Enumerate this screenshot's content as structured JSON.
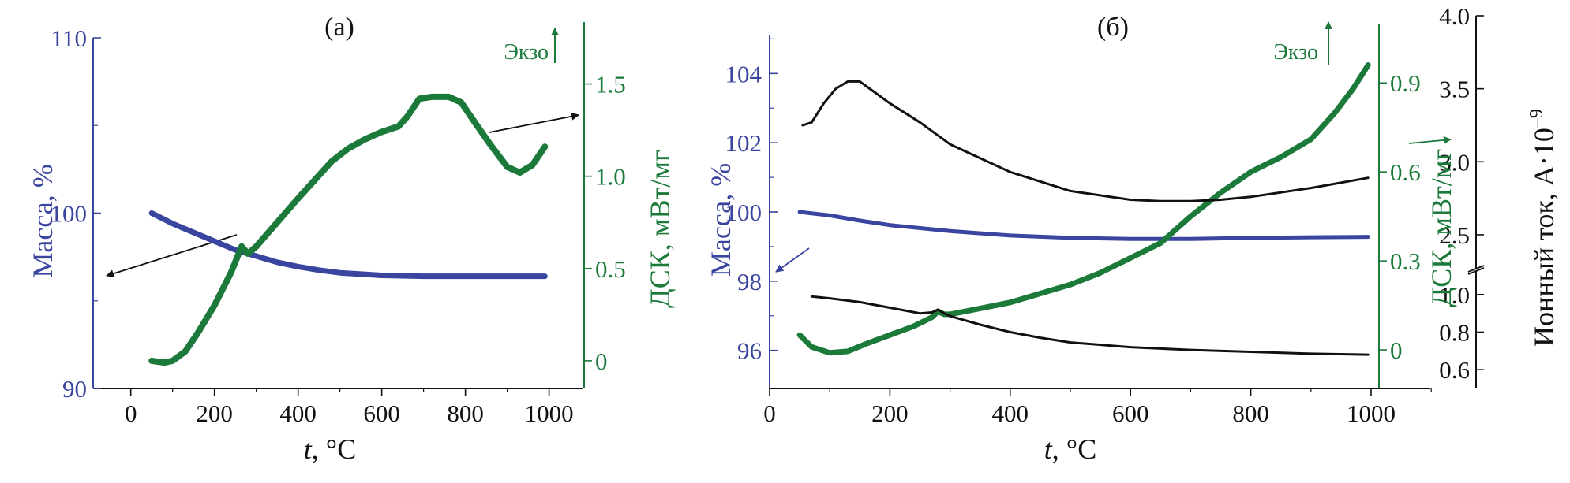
{
  "colors": {
    "mass": "#3a45a0",
    "dsc": "#1b7a3a",
    "ion": "#111111"
  },
  "chart_data": [
    {
      "panel_label": "(а)",
      "type": "line",
      "xlabel_italic": "t",
      "xlabel_rest": ", °C",
      "x_ticks": [
        "0",
        "200",
        "400",
        "600",
        "800",
        "1000"
      ],
      "xlim": [
        -90,
        1080
      ],
      "y_left": {
        "label": "Масса, %",
        "ticks": [
          "90",
          "100",
          "110"
        ],
        "lim": [
          90,
          110
        ]
      },
      "y_right": {
        "label": "ДСК, мВт/мг",
        "ticks": [
          "0",
          "0.5",
          "1.0",
          "1.5"
        ],
        "lim": [
          -0.15,
          1.75
        ]
      },
      "ekzo": "Экзо",
      "series": [
        {
          "axis": "left",
          "color_key": "mass",
          "x": [
            50,
            100,
            150,
            200,
            250,
            300,
            350,
            400,
            450,
            500,
            600,
            700,
            800,
            900,
            990
          ],
          "y": [
            100.0,
            99.4,
            98.9,
            98.4,
            97.9,
            97.55,
            97.2,
            96.95,
            96.75,
            96.6,
            96.45,
            96.4,
            96.4,
            96.4,
            96.4
          ]
        },
        {
          "axis": "right",
          "color_key": "dsc",
          "x": [
            50,
            80,
            100,
            130,
            160,
            200,
            240,
            265,
            280,
            300,
            350,
            400,
            440,
            480,
            520,
            560,
            600,
            640,
            660,
            690,
            720,
            760,
            790,
            820,
            860,
            900,
            930,
            960,
            990
          ],
          "y": [
            0.0,
            -0.01,
            0.0,
            0.05,
            0.15,
            0.3,
            0.48,
            0.62,
            0.58,
            0.62,
            0.75,
            0.88,
            0.98,
            1.08,
            1.15,
            1.2,
            1.24,
            1.27,
            1.32,
            1.42,
            1.43,
            1.43,
            1.4,
            1.3,
            1.17,
            1.05,
            1.02,
            1.06,
            1.16
          ]
        }
      ]
    },
    {
      "panel_label": "(б)",
      "type": "line",
      "xlabel_italic": "t",
      "xlabel_rest": ", °C",
      "x_ticks": [
        "0",
        "200",
        "400",
        "600",
        "800",
        "1000"
      ],
      "xlim": [
        0,
        1100
      ],
      "y_left": {
        "label": "Масса, %",
        "ticks": [
          "96",
          "98",
          "100",
          "102",
          "104"
        ],
        "lim": [
          94.9,
          105.1
        ]
      },
      "y_right": {
        "label": "ДСК, мВт/мг",
        "ticks": [
          "0",
          "0.3",
          "0.6",
          "0.9"
        ],
        "lim": [
          -0.13,
          1.06
        ]
      },
      "y_far": {
        "label": "Ионный ток, А·10",
        "label_sup": "–9",
        "ticks_lower": [
          "0.6",
          "0.8",
          "1.0"
        ],
        "ticks_upper": [
          "2.5",
          "3.0",
          "3.5",
          "4.0"
        ],
        "lower_lim": [
          0.5,
          1.1
        ],
        "upper_lim": [
          2.3,
          4.0
        ]
      },
      "ekzo": "Экзо",
      "series": [
        {
          "axis": "left",
          "color_key": "mass",
          "x": [
            50,
            100,
            150,
            200,
            300,
            400,
            500,
            600,
            700,
            800,
            900,
            995
          ],
          "y": [
            100.0,
            99.9,
            99.75,
            99.62,
            99.45,
            99.32,
            99.25,
            99.22,
            99.22,
            99.25,
            99.27,
            99.28
          ]
        },
        {
          "axis": "right",
          "color_key": "dsc",
          "x": [
            50,
            70,
            100,
            130,
            160,
            200,
            240,
            270,
            280,
            290,
            300,
            350,
            400,
            450,
            500,
            550,
            600,
            650,
            700,
            750,
            800,
            850,
            900,
            940,
            970,
            995
          ],
          "y": [
            0.05,
            0.01,
            -0.01,
            -0.005,
            0.02,
            0.05,
            0.08,
            0.11,
            0.13,
            0.12,
            0.12,
            0.14,
            0.16,
            0.19,
            0.22,
            0.26,
            0.31,
            0.36,
            0.45,
            0.53,
            0.6,
            0.65,
            0.71,
            0.8,
            0.88,
            0.96
          ]
        },
        {
          "axis": "far-upper",
          "color_key": "ion",
          "x": [
            55,
            70,
            90,
            110,
            130,
            150,
            170,
            200,
            250,
            300,
            400,
            500,
            600,
            650,
            700,
            750,
            800,
            900,
            995
          ],
          "y": [
            3.25,
            3.27,
            3.4,
            3.5,
            3.55,
            3.55,
            3.49,
            3.4,
            3.27,
            3.12,
            2.93,
            2.8,
            2.74,
            2.73,
            2.73,
            2.74,
            2.76,
            2.82,
            2.89
          ]
        },
        {
          "axis": "far-lower",
          "color_key": "ion",
          "x": [
            70,
            100,
            150,
            200,
            250,
            270,
            280,
            290,
            300,
            350,
            400,
            450,
            500,
            600,
            700,
            800,
            900,
            995
          ],
          "y": [
            0.99,
            0.98,
            0.96,
            0.93,
            0.9,
            0.905,
            0.92,
            0.9,
            0.885,
            0.84,
            0.8,
            0.77,
            0.745,
            0.72,
            0.705,
            0.695,
            0.685,
            0.68
          ]
        }
      ]
    }
  ]
}
